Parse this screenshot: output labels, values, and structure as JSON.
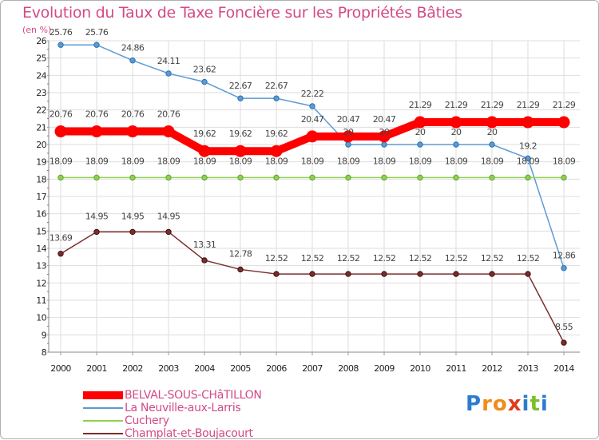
{
  "chart_data": {
    "type": "line",
    "title": "Evolution du Taux de Taxe Foncière sur les Propriétés Bâties",
    "unit_label": "(en %)",
    "xlabel": "",
    "ylabel": "",
    "ylim": [
      8,
      26
    ],
    "yticks": [
      "8",
      "9",
      "10",
      "11",
      "12",
      "13",
      "14",
      "15",
      "16",
      "17",
      "18",
      "19",
      "20",
      "21",
      "22",
      "23",
      "24",
      "25",
      "26"
    ],
    "categories": [
      "2000",
      "2001",
      "2002",
      "2003",
      "2004",
      "2005",
      "2006",
      "2007",
      "2008",
      "2009",
      "2010",
      "2011",
      "2012",
      "2013",
      "2014"
    ],
    "grid": true,
    "legend_position": "bottom-left",
    "series": [
      {
        "name": "BELVAL-SOUS-CHâTILLON",
        "color": "#ff0000",
        "values": [
          20.76,
          20.76,
          20.76,
          20.76,
          19.62,
          19.62,
          19.62,
          20.47,
          20.47,
          20.47,
          21.29,
          21.29,
          21.29,
          21.29,
          21.29
        ],
        "labels": [
          "20.76",
          "20.76",
          "20.76",
          "20.76",
          "19.62",
          "19.62",
          "19.62",
          "20.47",
          "20.47",
          "20.47",
          "21.29",
          "21.29",
          "21.29",
          "21.29",
          "21.29"
        ]
      },
      {
        "name": "La Neuville-aux-Larris",
        "color": "#5b9bd5",
        "values": [
          25.76,
          25.76,
          24.86,
          24.11,
          23.62,
          22.67,
          22.67,
          22.22,
          20,
          20,
          20,
          20,
          20,
          19.2,
          12.86
        ],
        "labels": [
          "25.76",
          "25.76",
          "24.86",
          "24.11",
          "23.62",
          "22.67",
          "22.67",
          "22.22",
          "20",
          "20",
          "20",
          "20",
          "20",
          "19.2",
          "12.86"
        ]
      },
      {
        "name": "Cuchery",
        "color": "#8fd14f",
        "values": [
          18.09,
          18.09,
          18.09,
          18.09,
          18.09,
          18.09,
          18.09,
          18.09,
          18.09,
          18.09,
          18.09,
          18.09,
          18.09,
          18.09,
          18.09
        ],
        "labels": [
          "18.09",
          "18.09",
          "18.09",
          "18.09",
          "18.09",
          "18.09",
          "18.09",
          "18.09",
          "18.09",
          "18.09",
          "18.09",
          "18.09",
          "18.09",
          "18.09",
          "18.09"
        ]
      },
      {
        "name": "Champlat-et-Boujacourt",
        "color": "#7b2c2c",
        "values": [
          13.69,
          14.95,
          14.95,
          14.95,
          13.31,
          12.78,
          12.52,
          12.52,
          12.52,
          12.52,
          12.52,
          12.52,
          12.52,
          12.52,
          8.55
        ],
        "labels": [
          "13.69",
          "14.95",
          "14.95",
          "14.95",
          "13.31",
          "12.78",
          "12.52",
          "12.52",
          "12.52",
          "12.52",
          "12.52",
          "12.52",
          "12.52",
          "12.52",
          "8.55"
        ]
      }
    ]
  },
  "brand": {
    "letters": [
      "P",
      "r",
      "o",
      "x",
      "i",
      "t",
      "i"
    ],
    "colors": [
      "#2b7bd1",
      "#f08c1c",
      "#f08c1c",
      "#e03a1e",
      "#2b7bd1",
      "#7bbf2a",
      "#2b7bd1"
    ]
  }
}
